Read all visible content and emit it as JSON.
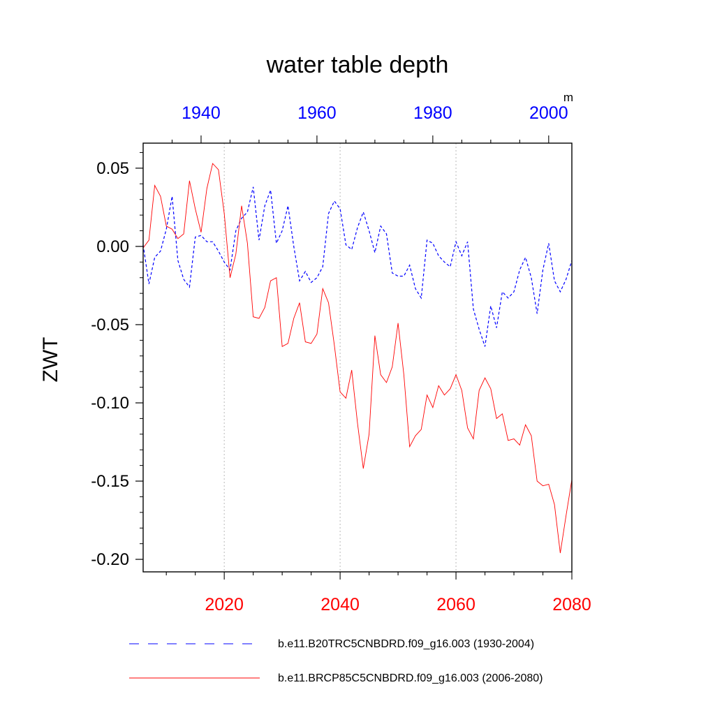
{
  "chart_data": {
    "type": "line",
    "title": "water table depth",
    "ylabel": "ZWT",
    "units": "m",
    "ylim": [
      -0.208,
      0.066
    ],
    "yticks": [
      0.05,
      0.0,
      -0.05,
      -0.1,
      -0.15,
      -0.2
    ],
    "ytick_labels": [
      "0.05",
      "0.00",
      "-0.05",
      "-0.10",
      "-0.15",
      "-0.20"
    ],
    "bottom_axis": {
      "range": [
        2006,
        2080
      ],
      "ticks": [
        2020,
        2040,
        2060,
        2080
      ],
      "tick_labels": [
        "2020",
        "2040",
        "2060",
        "2080"
      ],
      "color": "#ff0000"
    },
    "top_axis": {
      "range": [
        1930,
        2004
      ],
      "ticks": [
        1940,
        1960,
        1980,
        2000
      ],
      "tick_labels": [
        "1940",
        "1960",
        "1980",
        "2000"
      ],
      "color": "#0000ff"
    },
    "grid": "dotted vertical at bottom ticks",
    "series": [
      {
        "name": "b.e11.B20TRC5CNBDRD.f09_g16.003 (1930-2004)",
        "axis": "top",
        "color": "#0000ff",
        "style": "dashed",
        "x_start": 1930,
        "values": [
          0.001,
          -0.024,
          -0.007,
          -0.003,
          0.011,
          0.032,
          -0.009,
          -0.021,
          -0.026,
          0.006,
          0.007,
          0.003,
          0.003,
          -0.003,
          -0.01,
          -0.015,
          0.01,
          0.018,
          0.022,
          0.038,
          0.004,
          0.026,
          0.036,
          0.002,
          0.01,
          0.026,
          0.0,
          -0.022,
          -0.016,
          -0.023,
          -0.02,
          -0.013,
          0.021,
          0.029,
          0.024,
          0.001,
          -0.002,
          0.012,
          0.022,
          0.01,
          -0.004,
          0.013,
          0.008,
          -0.017,
          -0.019,
          -0.019,
          -0.012,
          -0.027,
          -0.033,
          0.004,
          0.002,
          -0.006,
          -0.01,
          -0.013,
          0.003,
          -0.006,
          0.003,
          -0.04,
          -0.053,
          -0.064,
          -0.038,
          -0.052,
          -0.029,
          -0.033,
          -0.029,
          -0.015,
          -0.007,
          -0.02,
          -0.043,
          -0.015,
          0.002,
          -0.022,
          -0.029,
          -0.021,
          -0.009
        ]
      },
      {
        "name": "b.e11.BRCP85C5CNBDRD.f09_g16.003 (2006-2080)",
        "axis": "bottom",
        "color": "#ff0000",
        "style": "solid",
        "x_start": 2006,
        "values": [
          -0.001,
          0.004,
          0.039,
          0.032,
          0.013,
          0.011,
          0.005,
          0.008,
          0.042,
          0.024,
          0.009,
          0.037,
          0.053,
          0.049,
          0.021,
          -0.02,
          -0.005,
          0.026,
          0.002,
          -0.045,
          -0.046,
          -0.039,
          -0.022,
          -0.02,
          -0.064,
          -0.062,
          -0.046,
          -0.036,
          -0.061,
          -0.062,
          -0.056,
          -0.027,
          -0.036,
          -0.063,
          -0.093,
          -0.097,
          -0.079,
          -0.113,
          -0.142,
          -0.12,
          -0.057,
          -0.082,
          -0.087,
          -0.077,
          -0.049,
          -0.082,
          -0.128,
          -0.121,
          -0.117,
          -0.095,
          -0.103,
          -0.089,
          -0.095,
          -0.091,
          -0.082,
          -0.092,
          -0.116,
          -0.123,
          -0.092,
          -0.084,
          -0.091,
          -0.11,
          -0.107,
          -0.124,
          -0.123,
          -0.127,
          -0.114,
          -0.121,
          -0.15,
          -0.153,
          -0.152,
          -0.165,
          -0.196,
          -0.172,
          -0.149
        ]
      }
    ]
  }
}
